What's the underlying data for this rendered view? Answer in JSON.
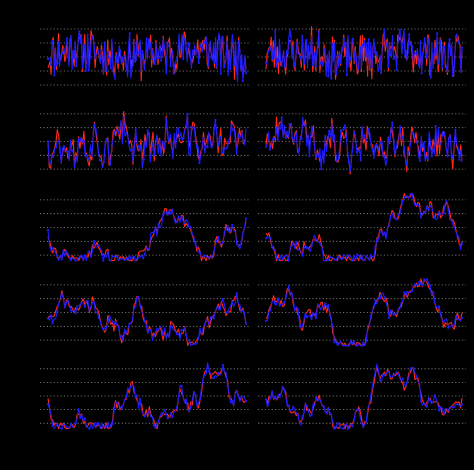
{
  "figure": {
    "background": "#000000",
    "grid_color": "#8c8c8c",
    "series_colors": {
      "red": "#ff2a1a",
      "blue": "#1d1dff"
    }
  },
  "chart_data": [
    {
      "type": "line",
      "row": 1,
      "col": 1,
      "grid": true,
      "grid_style": "dotted",
      "ylim": [
        0,
        1
      ],
      "gridlines": [
        0.9,
        0.7,
        0.5,
        0.3,
        0.1
      ],
      "pattern": "dense-noise",
      "seed": 11,
      "series": [
        {
          "color": "#ff2a1a"
        },
        {
          "color": "#1d1dff"
        }
      ]
    },
    {
      "type": "line",
      "row": 1,
      "col": 2,
      "grid": true,
      "grid_style": "dotted",
      "ylim": [
        0,
        1
      ],
      "gridlines": [
        0.9,
        0.7,
        0.5,
        0.3,
        0.1
      ],
      "pattern": "dense-noise",
      "seed": 23,
      "series": [
        {
          "color": "#ff2a1a"
        },
        {
          "color": "#1d1dff"
        }
      ]
    },
    {
      "type": "line",
      "row": 2,
      "col": 1,
      "grid": true,
      "grid_style": "dotted",
      "ylim": [
        0,
        1
      ],
      "gridlines": [
        0.9,
        0.7,
        0.5,
        0.3,
        0.1
      ],
      "pattern": "noise",
      "seed": 37,
      "series": [
        {
          "color": "#ff2a1a"
        },
        {
          "color": "#1d1dff"
        }
      ]
    },
    {
      "type": "line",
      "row": 2,
      "col": 2,
      "grid": true,
      "grid_style": "dotted",
      "ylim": [
        0,
        1
      ],
      "gridlines": [
        0.9,
        0.7,
        0.5,
        0.3,
        0.1
      ],
      "pattern": "noise",
      "seed": 41,
      "series": [
        {
          "color": "#ff2a1a"
        },
        {
          "color": "#1d1dff"
        }
      ]
    },
    {
      "type": "line",
      "row": 3,
      "col": 1,
      "grid": true,
      "grid_style": "dotted",
      "ylim": [
        0,
        1
      ],
      "gridlines": [
        0.9,
        0.7,
        0.5,
        0.3,
        0.1
      ],
      "pattern": "smooth",
      "seed": 53,
      "series": [
        {
          "color": "#ff2a1a"
        },
        {
          "color": "#1d1dff"
        }
      ]
    },
    {
      "type": "line",
      "row": 3,
      "col": 2,
      "grid": true,
      "grid_style": "dotted",
      "ylim": [
        0,
        1
      ],
      "gridlines": [
        0.9,
        0.7,
        0.5,
        0.3,
        0.1
      ],
      "pattern": "smooth",
      "seed": 67,
      "series": [
        {
          "color": "#ff2a1a"
        },
        {
          "color": "#1d1dff"
        }
      ]
    },
    {
      "type": "line",
      "row": 4,
      "col": 1,
      "grid": true,
      "grid_style": "dotted",
      "ylim": [
        0,
        1
      ],
      "gridlines": [
        0.9,
        0.7,
        0.5,
        0.3,
        0.1
      ],
      "pattern": "smooth",
      "seed": 71,
      "series": [
        {
          "color": "#ff2a1a"
        },
        {
          "color": "#1d1dff"
        }
      ]
    },
    {
      "type": "line",
      "row": 4,
      "col": 2,
      "grid": true,
      "grid_style": "dotted",
      "ylim": [
        0,
        1
      ],
      "gridlines": [
        0.9,
        0.7,
        0.5,
        0.3,
        0.1
      ],
      "pattern": "smooth",
      "seed": 83,
      "series": [
        {
          "color": "#ff2a1a"
        },
        {
          "color": "#1d1dff"
        }
      ]
    },
    {
      "type": "line",
      "row": 5,
      "col": 1,
      "grid": true,
      "grid_style": "dotted",
      "ylim": [
        0,
        1
      ],
      "gridlines": [
        0.9,
        0.7,
        0.5,
        0.3,
        0.1
      ],
      "pattern": "smooth",
      "seed": 97,
      "series": [
        {
          "color": "#ff2a1a"
        },
        {
          "color": "#1d1dff"
        }
      ]
    },
    {
      "type": "line",
      "row": 5,
      "col": 2,
      "grid": true,
      "grid_style": "dotted",
      "ylim": [
        0,
        1
      ],
      "gridlines": [
        0.9,
        0.7,
        0.5,
        0.3,
        0.1
      ],
      "pattern": "smooth",
      "seed": 101,
      "series": [
        {
          "color": "#ff2a1a"
        },
        {
          "color": "#1d1dff"
        }
      ]
    }
  ]
}
